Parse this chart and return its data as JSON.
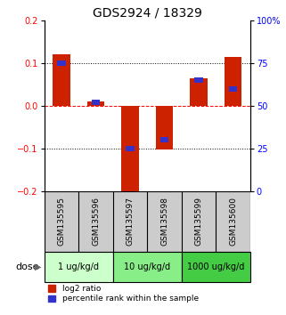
{
  "title": "GDS2924 / 18329",
  "samples": [
    "GSM135595",
    "GSM135596",
    "GSM135597",
    "GSM135598",
    "GSM135599",
    "GSM135600"
  ],
  "log2_ratio": [
    0.12,
    0.01,
    -0.22,
    -0.102,
    0.065,
    0.115
  ],
  "percentile": [
    75,
    52,
    25,
    30,
    65,
    60
  ],
  "ylim_left": [
    -0.2,
    0.2
  ],
  "ylim_right": [
    0,
    100
  ],
  "yticks_left": [
    -0.2,
    -0.1,
    0,
    0.1,
    0.2
  ],
  "yticks_right": [
    0,
    25,
    50,
    75,
    100
  ],
  "ytick_labels_right": [
    "0",
    "25",
    "50",
    "75",
    "100%"
  ],
  "hline_y": [
    0.1,
    0,
    -0.1
  ],
  "hline_styles": [
    "dotted",
    "dashed",
    "dotted"
  ],
  "hline_colors": [
    "black",
    "red",
    "black"
  ],
  "red_bar_width": 0.5,
  "blue_bar_width": 0.25,
  "blue_bar_height": 0.012,
  "red_color": "#CC2200",
  "blue_color": "#3333CC",
  "groups": [
    {
      "label": "1 ug/kg/d",
      "indices": [
        0,
        1
      ],
      "color": "#ccffcc"
    },
    {
      "label": "10 ug/kg/d",
      "indices": [
        2,
        3
      ],
      "color": "#88ee88"
    },
    {
      "label": "1000 ug/kg/d",
      "indices": [
        4,
        5
      ],
      "color": "#44cc44"
    }
  ],
  "sample_box_color": "#cccccc",
  "dose_label": "dose",
  "legend_red": "log2 ratio",
  "legend_blue": "percentile rank within the sample",
  "title_fontsize": 10,
  "tick_fontsize": 7,
  "label_fontsize": 8,
  "sample_fontsize": 6.5,
  "dose_fontsize": 7
}
